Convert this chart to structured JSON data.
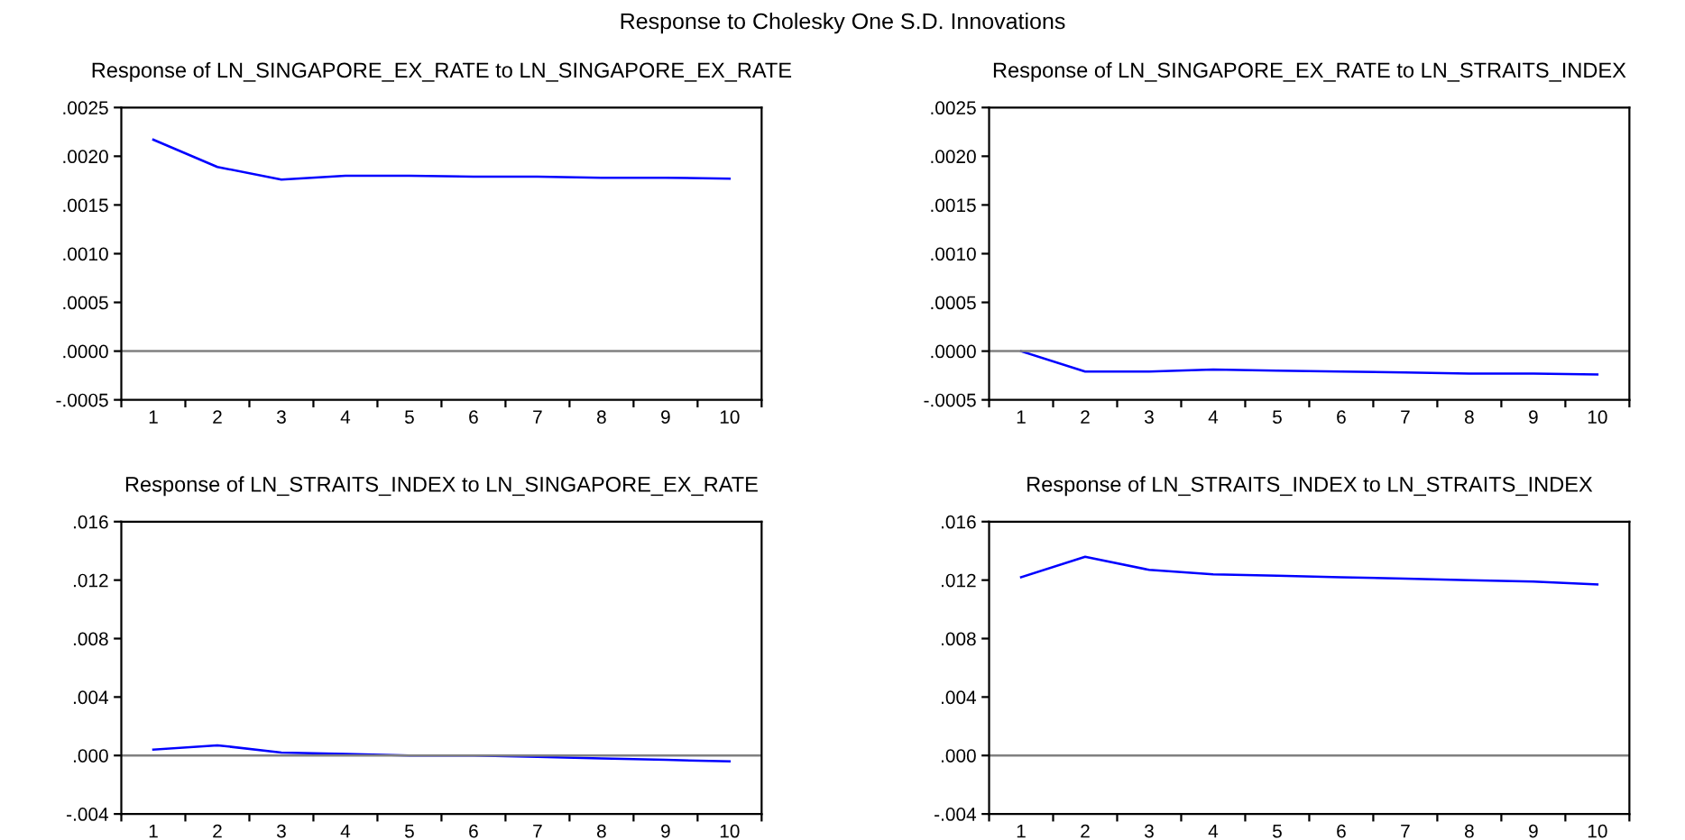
{
  "chart_data": [
    {
      "type": "line",
      "title": "Response of LN_SINGAPORE_EX_RATE to LN_SINGAPORE_EX_RATE",
      "annotations": [
        "Response to Cholesky One S.D. Innovations"
      ],
      "categories": [
        "1",
        "2",
        "3",
        "4",
        "5",
        "6",
        "7",
        "8",
        "9",
        "10"
      ],
      "series": [
        {
          "color": "#0000ff",
          "values": [
            0.00217,
            0.00189,
            0.00176,
            0.0018,
            0.0018,
            0.00179,
            0.00179,
            0.00178,
            0.00178,
            0.00177
          ]
        }
      ],
      "ylim": [
        -0.0005,
        0.0025
      ],
      "yticks": [
        {
          "value": -0.0005,
          "label": "-.0005"
        },
        {
          "value": 0,
          "label": ".0000"
        },
        {
          "value": 0.0005,
          "label": ".0005"
        },
        {
          "value": 0.001,
          "label": ".0010"
        },
        {
          "value": 0.0015,
          "label": ".0015"
        },
        {
          "value": 0.002,
          "label": ".0020"
        },
        {
          "value": 0.0025,
          "label": ".0025"
        }
      ],
      "ref_lines": [
        {
          "axis": "y",
          "value": 0,
          "color": "#808080"
        }
      ],
      "grid": false,
      "legend": false,
      "line_style": "solid",
      "marker": "none"
    },
    {
      "type": "line",
      "title": "Response of LN_SINGAPORE_EX_RATE to LN_STRAITS_INDEX",
      "categories": [
        "1",
        "2",
        "3",
        "4",
        "5",
        "6",
        "7",
        "8",
        "9",
        "10"
      ],
      "series": [
        {
          "color": "#0000ff",
          "values": [
            0.0,
            -0.00021,
            -0.00021,
            -0.00019,
            -0.0002,
            -0.00021,
            -0.00022,
            -0.00023,
            -0.00023,
            -0.00024
          ]
        }
      ],
      "ylim": [
        -0.0005,
        0.0025
      ],
      "yticks": [
        {
          "value": -0.0005,
          "label": "-.0005"
        },
        {
          "value": 0,
          "label": ".0000"
        },
        {
          "value": 0.0005,
          "label": ".0005"
        },
        {
          "value": 0.001,
          "label": ".0010"
        },
        {
          "value": 0.0015,
          "label": ".0015"
        },
        {
          "value": 0.002,
          "label": ".0020"
        },
        {
          "value": 0.0025,
          "label": ".0025"
        }
      ],
      "ref_lines": [
        {
          "axis": "y",
          "value": 0,
          "color": "#808080"
        }
      ],
      "grid": false,
      "legend": false,
      "line_style": "solid",
      "marker": "none"
    },
    {
      "type": "line",
      "title": "Response of LN_STRAITS_INDEX to LN_SINGAPORE_EX_RATE",
      "categories": [
        "1",
        "2",
        "3",
        "4",
        "5",
        "6",
        "7",
        "8",
        "9",
        "10"
      ],
      "series": [
        {
          "color": "#0000ff",
          "values": [
            0.0004,
            0.0007,
            0.0002,
            0.0001,
            0.0,
            0.0,
            -0.0001,
            -0.0002,
            -0.0003,
            -0.0004
          ]
        }
      ],
      "ylim": [
        -0.004,
        0.016
      ],
      "yticks": [
        {
          "value": -0.004,
          "label": "-.004"
        },
        {
          "value": 0,
          "label": ".000"
        },
        {
          "value": 0.004,
          "label": ".004"
        },
        {
          "value": 0.008,
          "label": ".008"
        },
        {
          "value": 0.012,
          "label": ".012"
        },
        {
          "value": 0.016,
          "label": ".016"
        }
      ],
      "ref_lines": [
        {
          "axis": "y",
          "value": 0,
          "color": "#808080"
        }
      ],
      "grid": false,
      "legend": false,
      "line_style": "solid",
      "marker": "none"
    },
    {
      "type": "line",
      "title": "Response of LN_STRAITS_INDEX to LN_STRAITS_INDEX",
      "categories": [
        "1",
        "2",
        "3",
        "4",
        "5",
        "6",
        "7",
        "8",
        "9",
        "10"
      ],
      "series": [
        {
          "color": "#0000ff",
          "values": [
            0.0122,
            0.0136,
            0.0127,
            0.0124,
            0.0123,
            0.0122,
            0.0121,
            0.012,
            0.0119,
            0.0117
          ]
        }
      ],
      "ylim": [
        -0.004,
        0.016
      ],
      "yticks": [
        {
          "value": -0.004,
          "label": "-.004"
        },
        {
          "value": 0,
          "label": ".000"
        },
        {
          "value": 0.004,
          "label": ".004"
        },
        {
          "value": 0.008,
          "label": ".008"
        },
        {
          "value": 0.012,
          "label": ".012"
        },
        {
          "value": 0.016,
          "label": ".016"
        }
      ],
      "ref_lines": [
        {
          "axis": "y",
          "value": 0,
          "color": "#808080"
        }
      ],
      "grid": false,
      "legend": false,
      "line_style": "solid",
      "marker": "none"
    }
  ]
}
